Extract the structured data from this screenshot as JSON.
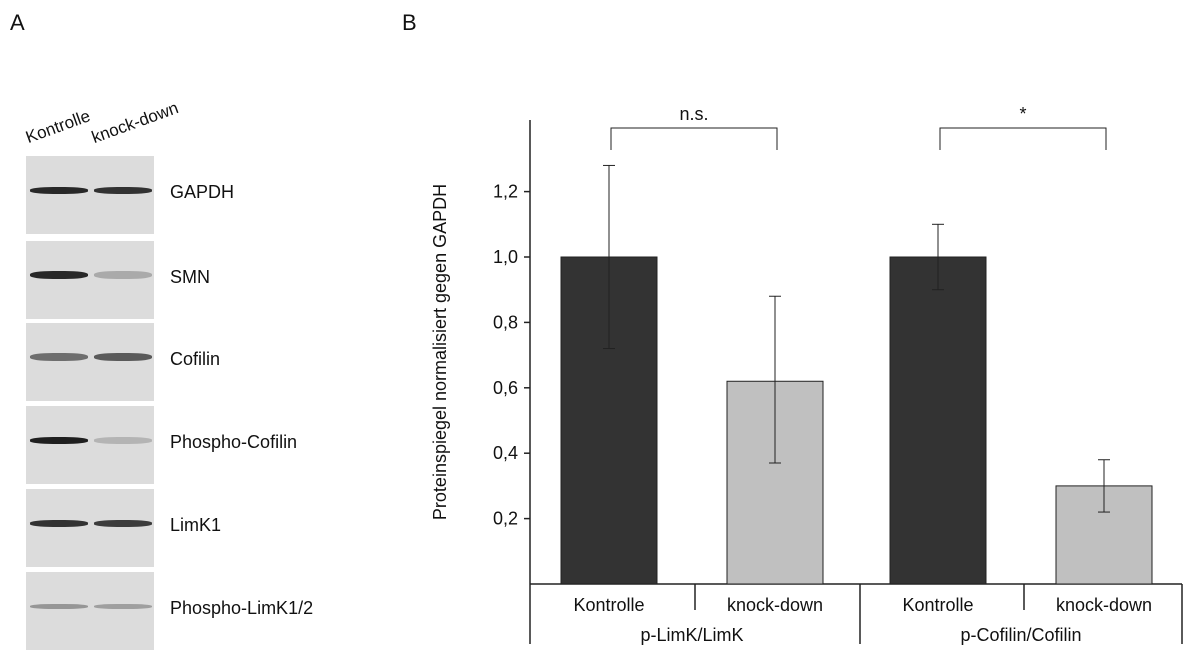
{
  "panels": {
    "a": "A",
    "b": "B"
  },
  "blot": {
    "lanes": [
      "Kontrolle",
      "knock-down"
    ],
    "rows": [
      {
        "protein": "GAPDH"
      },
      {
        "protein": "SMN"
      },
      {
        "protein": "Cofilin"
      },
      {
        "protein": "Phospho-Cofilin"
      },
      {
        "protein": "LimK1"
      },
      {
        "protein": "Phospho-LimK1/2"
      }
    ]
  },
  "chart_data": {
    "type": "bar",
    "title": "",
    "ylabel": "Proteinspiegel normalisiert gegen GAPDH",
    "ylim": [
      0,
      1.4
    ],
    "yticks": [
      "0,2",
      "0,4",
      "0,6",
      "0,8",
      "1,0",
      "1,2"
    ],
    "groups": [
      {
        "name": "p-LimK/LimK",
        "bars": [
          {
            "label": "Kontrolle",
            "value": 1.0,
            "error_low": 0.72,
            "error_high": 1.28,
            "color": "#333333"
          },
          {
            "label": "knock-down",
            "value": 0.62,
            "error_low": 0.37,
            "error_high": 0.88,
            "color": "#c0c0c0"
          }
        ],
        "significance": "n.s."
      },
      {
        "name": "p-Cofilin/Cofilin",
        "bars": [
          {
            "label": "Kontrolle",
            "value": 1.0,
            "error_low": 0.9,
            "error_high": 1.1,
            "color": "#333333"
          },
          {
            "label": "knock-down",
            "value": 0.3,
            "error_low": 0.22,
            "error_high": 0.38,
            "color": "#c0c0c0"
          }
        ],
        "significance": "*"
      }
    ],
    "grid": false
  }
}
